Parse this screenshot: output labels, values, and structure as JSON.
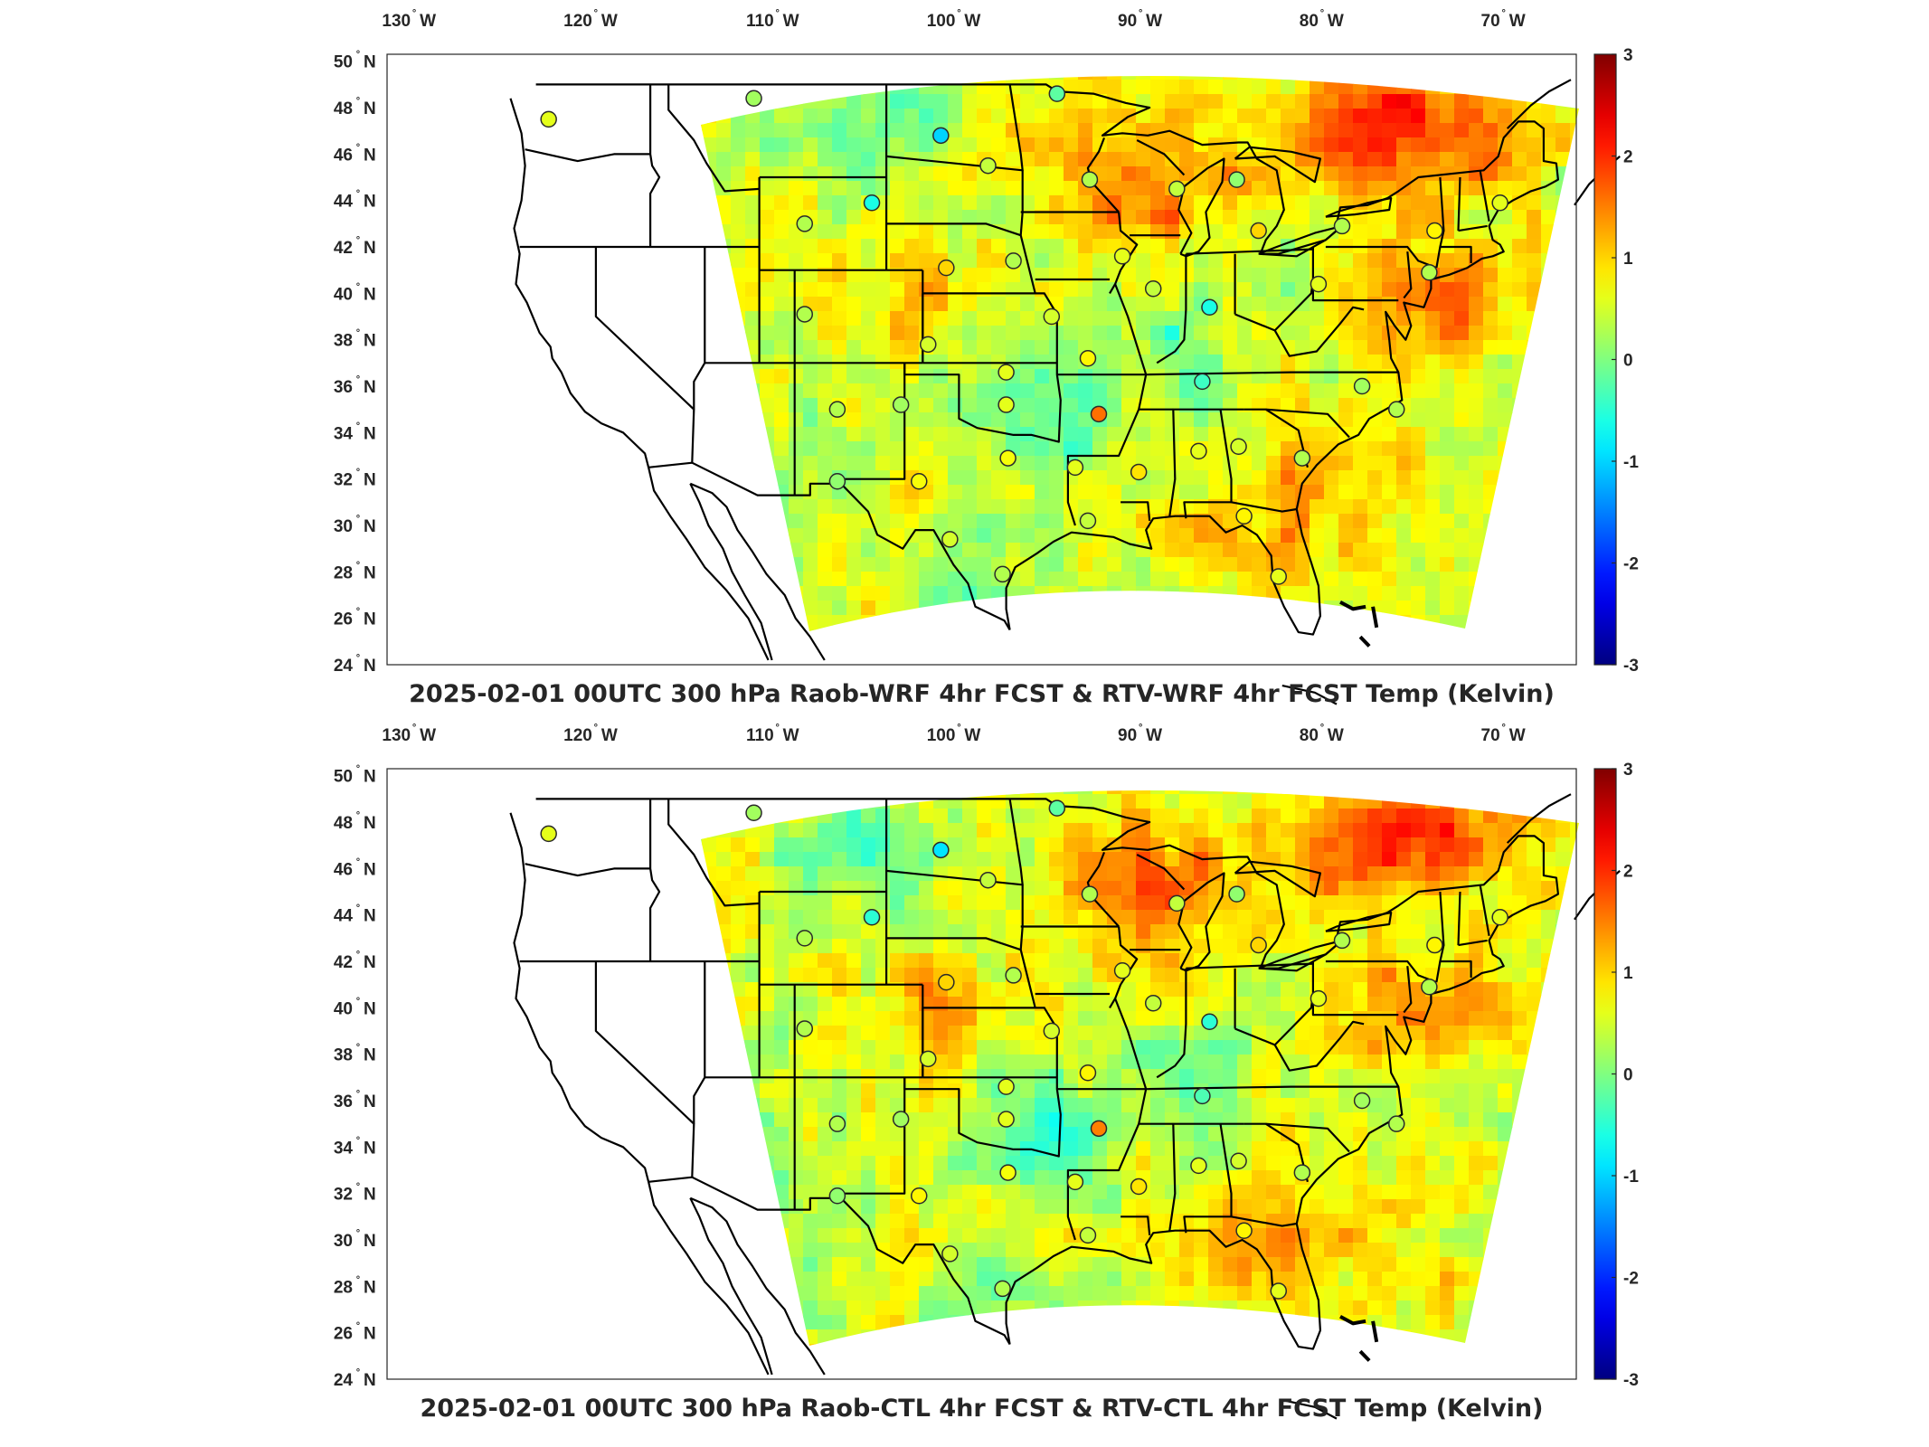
{
  "panels": [
    {
      "title": "2025-02-01 00UTC 300 hPa Raob-WRF 4hr FCST & RTV-WRF 4hr FCST Temp (Kelvin)",
      "stations": [
        {
          "lon": -122.6,
          "lat": 47.5,
          "v": 0.6
        },
        {
          "lon": -111.3,
          "lat": 48.4,
          "v": 0.2
        },
        {
          "lon": -101.0,
          "lat": 46.8,
          "v": -1.0
        },
        {
          "lon": -94.6,
          "lat": 48.6,
          "v": -0.2
        },
        {
          "lon": -98.4,
          "lat": 45.5,
          "v": 0.4
        },
        {
          "lon": -92.8,
          "lat": 44.9,
          "v": 0.3
        },
        {
          "lon": -104.8,
          "lat": 43.9,
          "v": -0.6
        },
        {
          "lon": -108.5,
          "lat": 43.0,
          "v": 0.3
        },
        {
          "lon": -88.0,
          "lat": 44.5,
          "v": 0.4
        },
        {
          "lon": -84.7,
          "lat": 44.9,
          "v": 0.1
        },
        {
          "lon": -83.5,
          "lat": 42.7,
          "v": 1.0
        },
        {
          "lon": -78.9,
          "lat": 42.9,
          "v": 0.3
        },
        {
          "lon": -73.8,
          "lat": 42.7,
          "v": 0.8
        },
        {
          "lon": -70.2,
          "lat": 43.9,
          "v": 0.6
        },
        {
          "lon": -97.0,
          "lat": 41.4,
          "v": 0.3
        },
        {
          "lon": -100.7,
          "lat": 41.1,
          "v": 1.0
        },
        {
          "lon": -91.0,
          "lat": 41.6,
          "v": 0.6
        },
        {
          "lon": -89.3,
          "lat": 40.2,
          "v": 0.4
        },
        {
          "lon": -86.2,
          "lat": 39.4,
          "v": -0.6
        },
        {
          "lon": -80.2,
          "lat": 40.4,
          "v": 0.6
        },
        {
          "lon": -108.5,
          "lat": 39.1,
          "v": 0.3
        },
        {
          "lon": -94.9,
          "lat": 39.0,
          "v": 0.5
        },
        {
          "lon": -101.7,
          "lat": 37.8,
          "v": 0.5
        },
        {
          "lon": -97.4,
          "lat": 36.6,
          "v": 0.6
        },
        {
          "lon": -92.9,
          "lat": 37.2,
          "v": 0.8
        },
        {
          "lon": -86.6,
          "lat": 36.2,
          "v": -0.4
        },
        {
          "lon": -77.8,
          "lat": 36.0,
          "v": 0.2
        },
        {
          "lon": -106.7,
          "lat": 35.0,
          "v": 0.3
        },
        {
          "lon": -103.2,
          "lat": 35.2,
          "v": 0.2
        },
        {
          "lon": -97.4,
          "lat": 35.2,
          "v": 0.6
        },
        {
          "lon": -92.3,
          "lat": 34.8,
          "v": 1.6
        },
        {
          "lon": -90.1,
          "lat": 32.3,
          "v": 0.9
        },
        {
          "lon": -86.8,
          "lat": 33.2,
          "v": 0.6
        },
        {
          "lon": -84.6,
          "lat": 33.4,
          "v": 0.5
        },
        {
          "lon": -81.1,
          "lat": 32.9,
          "v": 0.3
        },
        {
          "lon": -75.9,
          "lat": 35.0,
          "v": 0.3
        },
        {
          "lon": -97.3,
          "lat": 32.9,
          "v": 0.7
        },
        {
          "lon": -93.6,
          "lat": 32.5,
          "v": 0.6
        },
        {
          "lon": -106.7,
          "lat": 31.9,
          "v": 0.1
        },
        {
          "lon": -102.2,
          "lat": 31.9,
          "v": 0.7
        },
        {
          "lon": -100.5,
          "lat": 29.4,
          "v": 0.5
        },
        {
          "lon": -97.6,
          "lat": 27.9,
          "v": 0.3
        },
        {
          "lon": -92.9,
          "lat": 30.2,
          "v": 0.4
        },
        {
          "lon": -84.3,
          "lat": 30.4,
          "v": 0.8
        },
        {
          "lon": -82.4,
          "lat": 27.8,
          "v": 0.6
        },
        {
          "lon": -74.1,
          "lat": 40.9,
          "v": 0.3
        }
      ]
    },
    {
      "title": "2025-02-01 00UTC 300 hPa Raob-CTL 4hr FCST & RTV-CTL 4hr FCST Temp (Kelvin)",
      "stations": [
        {
          "lon": -122.6,
          "lat": 47.5,
          "v": 0.6
        },
        {
          "lon": -111.3,
          "lat": 48.4,
          "v": 0.2
        },
        {
          "lon": -101.0,
          "lat": 46.8,
          "v": -0.9
        },
        {
          "lon": -94.6,
          "lat": 48.6,
          "v": -0.2
        },
        {
          "lon": -98.4,
          "lat": 45.5,
          "v": 0.4
        },
        {
          "lon": -92.8,
          "lat": 44.9,
          "v": 0.3
        },
        {
          "lon": -104.8,
          "lat": 43.9,
          "v": -0.5
        },
        {
          "lon": -108.5,
          "lat": 43.0,
          "v": 0.3
        },
        {
          "lon": -88.0,
          "lat": 44.5,
          "v": 0.4
        },
        {
          "lon": -84.7,
          "lat": 44.9,
          "v": 0.1
        },
        {
          "lon": -83.5,
          "lat": 42.7,
          "v": 1.0
        },
        {
          "lon": -78.9,
          "lat": 42.9,
          "v": 0.3
        },
        {
          "lon": -73.8,
          "lat": 42.7,
          "v": 0.8
        },
        {
          "lon": -70.2,
          "lat": 43.9,
          "v": 0.6
        },
        {
          "lon": -97.0,
          "lat": 41.4,
          "v": 0.3
        },
        {
          "lon": -100.7,
          "lat": 41.1,
          "v": 1.0
        },
        {
          "lon": -91.0,
          "lat": 41.6,
          "v": 0.6
        },
        {
          "lon": -89.3,
          "lat": 40.2,
          "v": 0.4
        },
        {
          "lon": -86.2,
          "lat": 39.4,
          "v": -0.5
        },
        {
          "lon": -80.2,
          "lat": 40.4,
          "v": 0.6
        },
        {
          "lon": -108.5,
          "lat": 39.1,
          "v": 0.3
        },
        {
          "lon": -94.9,
          "lat": 39.0,
          "v": 0.5
        },
        {
          "lon": -101.7,
          "lat": 37.8,
          "v": 0.5
        },
        {
          "lon": -97.4,
          "lat": 36.6,
          "v": 0.6
        },
        {
          "lon": -92.9,
          "lat": 37.2,
          "v": 0.8
        },
        {
          "lon": -86.6,
          "lat": 36.2,
          "v": -0.3
        },
        {
          "lon": -77.8,
          "lat": 36.0,
          "v": 0.2
        },
        {
          "lon": -106.7,
          "lat": 35.0,
          "v": 0.3
        },
        {
          "lon": -103.2,
          "lat": 35.2,
          "v": 0.2
        },
        {
          "lon": -97.4,
          "lat": 35.2,
          "v": 0.6
        },
        {
          "lon": -92.3,
          "lat": 34.8,
          "v": 1.5
        },
        {
          "lon": -90.1,
          "lat": 32.3,
          "v": 0.9
        },
        {
          "lon": -86.8,
          "lat": 33.2,
          "v": 0.6
        },
        {
          "lon": -84.6,
          "lat": 33.4,
          "v": 0.5
        },
        {
          "lon": -81.1,
          "lat": 32.9,
          "v": 0.3
        },
        {
          "lon": -75.9,
          "lat": 35.0,
          "v": 0.3
        },
        {
          "lon": -97.3,
          "lat": 32.9,
          "v": 0.7
        },
        {
          "lon": -93.6,
          "lat": 32.5,
          "v": 0.6
        },
        {
          "lon": -106.7,
          "lat": 31.9,
          "v": 0.1
        },
        {
          "lon": -102.2,
          "lat": 31.9,
          "v": 0.8
        },
        {
          "lon": -100.5,
          "lat": 29.4,
          "v": 0.5
        },
        {
          "lon": -97.6,
          "lat": 27.9,
          "v": 0.3
        },
        {
          "lon": -92.9,
          "lat": 30.2,
          "v": 0.4
        },
        {
          "lon": -84.3,
          "lat": 30.4,
          "v": 0.8
        },
        {
          "lon": -82.4,
          "lat": 27.8,
          "v": 0.6
        },
        {
          "lon": -74.1,
          "lat": 40.9,
          "v": 0.3
        }
      ]
    }
  ],
  "lon_ticks": [
    {
      "value": -130,
      "label": "130",
      "hemi": "W"
    },
    {
      "value": -120,
      "label": "120",
      "hemi": "W"
    },
    {
      "value": -110,
      "label": "110",
      "hemi": "W"
    },
    {
      "value": -100,
      "label": "100",
      "hemi": "W"
    },
    {
      "value": -90,
      "label": "90",
      "hemi": "W"
    },
    {
      "value": -80,
      "label": "80",
      "hemi": "W"
    },
    {
      "value": -70,
      "label": "70",
      "hemi": "W"
    }
  ],
  "lat_ticks": [
    {
      "value": 50,
      "label": "50",
      "hemi": "N"
    },
    {
      "value": 48,
      "label": "48",
      "hemi": "N"
    },
    {
      "value": 46,
      "label": "46",
      "hemi": "N"
    },
    {
      "value": 44,
      "label": "44",
      "hemi": "N"
    },
    {
      "value": 42,
      "label": "42",
      "hemi": "N"
    },
    {
      "value": 40,
      "label": "40",
      "hemi": "N"
    },
    {
      "value": 38,
      "label": "38",
      "hemi": "N"
    },
    {
      "value": 36,
      "label": "36",
      "hemi": "N"
    },
    {
      "value": 34,
      "label": "34",
      "hemi": "N"
    },
    {
      "value": 32,
      "label": "32",
      "hemi": "N"
    },
    {
      "value": 30,
      "label": "30",
      "hemi": "N"
    },
    {
      "value": 28,
      "label": "28",
      "hemi": "N"
    },
    {
      "value": 26,
      "label": "26",
      "hemi": "N"
    },
    {
      "value": 24,
      "label": "24",
      "hemi": "N"
    }
  ],
  "colorbar": {
    "colormap": "jet",
    "range": [
      -3,
      3
    ],
    "ticks": [
      "3",
      "2",
      "1",
      "0",
      "-1",
      "-2",
      "-3"
    ]
  },
  "map": {
    "lon_range": [
      -131.5,
      -66
    ],
    "lat_range": [
      24,
      50.3
    ],
    "ocean_color": "#ffffff",
    "state_line_color": "#000000"
  }
}
